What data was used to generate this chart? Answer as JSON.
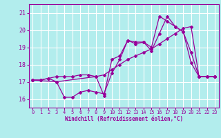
{
  "xlabel": "Windchill (Refroidissement éolien,°C)",
  "background_color": "#b2eded",
  "grid_color": "#ffffff",
  "line_color": "#990099",
  "xlim": [
    -0.5,
    23.5
  ],
  "ylim": [
    15.5,
    21.5
  ],
  "yticks": [
    16,
    17,
    18,
    19,
    20,
    21
  ],
  "xticks": [
    0,
    1,
    2,
    3,
    4,
    5,
    6,
    7,
    8,
    9,
    10,
    11,
    12,
    13,
    14,
    15,
    16,
    17,
    18,
    19,
    20,
    21,
    22,
    23
  ],
  "series1_x": [
    0,
    1,
    2,
    3,
    4,
    5,
    6,
    7,
    8,
    9,
    10,
    11,
    12,
    13,
    14,
    15,
    16,
    17,
    18,
    19,
    20,
    21,
    22,
    23
  ],
  "series1_y": [
    17.1,
    17.1,
    17.2,
    17.0,
    16.1,
    16.1,
    16.4,
    16.5,
    16.4,
    16.3,
    17.5,
    18.3,
    19.4,
    19.3,
    19.3,
    18.8,
    19.8,
    20.8,
    20.2,
    19.9,
    18.1,
    17.3,
    17.3,
    17.3
  ],
  "series2_x": [
    0,
    1,
    2,
    3,
    4,
    5,
    6,
    7,
    8,
    9,
    10,
    11,
    12,
    13,
    14,
    15,
    16,
    17,
    18,
    19,
    20,
    21,
    22,
    23
  ],
  "series2_y": [
    17.1,
    17.1,
    17.2,
    17.3,
    17.3,
    17.3,
    17.4,
    17.4,
    17.3,
    17.4,
    17.7,
    18.0,
    18.3,
    18.5,
    18.7,
    18.9,
    19.2,
    19.5,
    19.8,
    20.1,
    20.2,
    17.3,
    17.3,
    17.3
  ],
  "series3_x": [
    0,
    3,
    8,
    9,
    10,
    11,
    12,
    13,
    14,
    15,
    16,
    17,
    18,
    19,
    20,
    21,
    22,
    23
  ],
  "series3_y": [
    17.1,
    17.0,
    17.3,
    16.2,
    18.3,
    18.5,
    19.4,
    19.2,
    19.3,
    19.0,
    20.8,
    20.5,
    20.2,
    19.9,
    18.7,
    17.3,
    17.3,
    17.3
  ]
}
